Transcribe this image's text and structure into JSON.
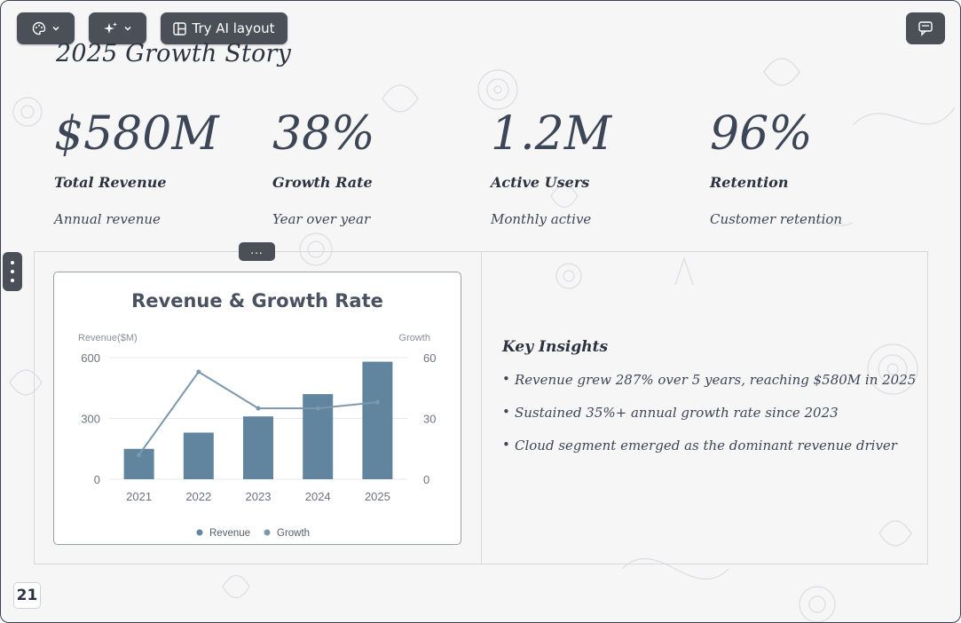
{
  "toolbar": {
    "theme_icon": "palette-icon",
    "ai_icon": "sparkles-icon",
    "ai_layout_label": "Try AI layout",
    "comment_icon": "comment-icon"
  },
  "slide": {
    "title": "2025 Growth Story",
    "page_number": "21",
    "handle_label": "...",
    "stats": [
      {
        "value": "$580M",
        "label": "Total Revenue",
        "sub": "Annual revenue"
      },
      {
        "value": "38%",
        "label": "Growth Rate",
        "sub": "Year over year"
      },
      {
        "value": "1.2M",
        "label": "Active Users",
        "sub": "Monthly active"
      },
      {
        "value": "96%",
        "label": "Retention",
        "sub": "Customer retention"
      }
    ],
    "insights": {
      "heading": "Key Insights",
      "items": [
        "Revenue grew 287% over 5 years, reaching $580M in 2025",
        "Sustained 35%+ annual growth rate since 2023",
        "Cloud segment emerged as the dominant revenue driver"
      ]
    }
  },
  "chart_data": {
    "type": "bar",
    "title": "Revenue & Growth Rate",
    "categories": [
      "2021",
      "2022",
      "2023",
      "2024",
      "2025"
    ],
    "series": [
      {
        "name": "Revenue",
        "type": "bar",
        "axis": "left",
        "values": [
          150,
          230,
          310,
          420,
          580
        ]
      },
      {
        "name": "Growth",
        "type": "line",
        "axis": "right",
        "values": [
          12,
          53,
          35,
          35,
          38
        ]
      }
    ],
    "ylabel_left": "Revenue($M)",
    "ylabel_right": "Growth",
    "ylim_left": [
      0,
      600
    ],
    "ylim_right": [
      0,
      60
    ],
    "yticks_left": [
      "0",
      "300",
      "600"
    ],
    "yticks_right": [
      "0",
      "30",
      "60"
    ],
    "legend_position": "bottom-center",
    "bar_color": "#61859f",
    "line_color": "#7d98ad",
    "grid": true
  },
  "colors": {
    "toolbar_bg": "#4a4f58",
    "text_dark": "#2c3340",
    "text_muted": "#3d4656"
  }
}
